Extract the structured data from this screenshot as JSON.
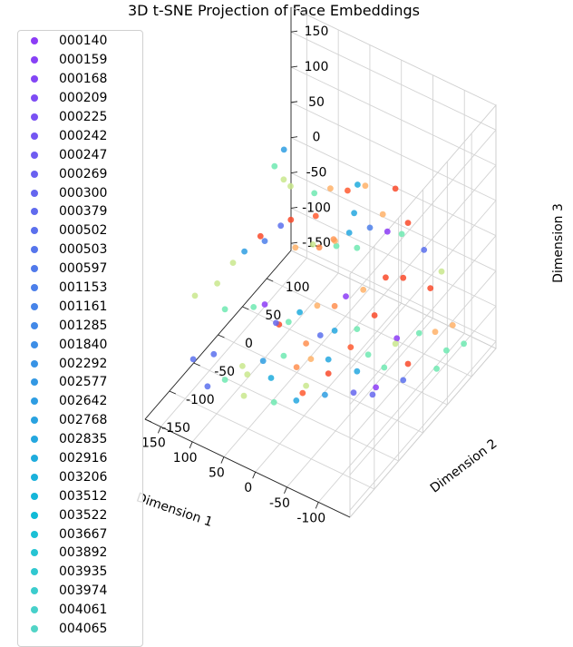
{
  "chart_data": {
    "type": "scatter",
    "title": "3D t-SNE Projection of Face Embeddings",
    "xlabel": "Dimension 1",
    "ylabel": "Dimension 2",
    "zlabel": "Dimension 3",
    "xlim": [
      -150,
      175
    ],
    "ylim": [
      -150,
      150
    ],
    "zlim": [
      -160,
      185
    ],
    "x_ticks": [
      "-100",
      "-50",
      "0",
      "50",
      "100",
      "150"
    ],
    "x_tick_values": [
      -100,
      -50,
      0,
      50,
      100,
      150
    ],
    "y_ticks": [
      "-150",
      "-100",
      "-50",
      "0",
      "50",
      "100"
    ],
    "y_tick_values": [
      -150,
      -100,
      -50,
      0,
      50,
      100
    ],
    "z_ticks": [
      "-150",
      "-100",
      "-50",
      "0",
      "50",
      "100",
      "150"
    ],
    "z_tick_values": [
      -150,
      -100,
      -50,
      0,
      50,
      100,
      150
    ],
    "grid": true,
    "legend_position": "left",
    "legend": [
      {
        "name": "000140",
        "color": "#8c3cf6"
      },
      {
        "name": "000159",
        "color": "#8841f6"
      },
      {
        "name": "000168",
        "color": "#8346f5"
      },
      {
        "name": "000209",
        "color": "#7e4cf4"
      },
      {
        "name": "000225",
        "color": "#7951f3"
      },
      {
        "name": "000242",
        "color": "#7456f2"
      },
      {
        "name": "000247",
        "color": "#6f5cf1"
      },
      {
        "name": "000269",
        "color": "#6a61f0"
      },
      {
        "name": "000300",
        "color": "#6566ef"
      },
      {
        "name": "000379",
        "color": "#606bee"
      },
      {
        "name": "000502",
        "color": "#5b70ed"
      },
      {
        "name": "000503",
        "color": "#5675ec"
      },
      {
        "name": "000597",
        "color": "#517aeb"
      },
      {
        "name": "001153",
        "color": "#4c7fea"
      },
      {
        "name": "001161",
        "color": "#4784e9"
      },
      {
        "name": "001285",
        "color": "#4289e8"
      },
      {
        "name": "001840",
        "color": "#3d8ee6"
      },
      {
        "name": "002292",
        "color": "#3893e5"
      },
      {
        "name": "002577",
        "color": "#3398e3"
      },
      {
        "name": "002642",
        "color": "#2e9de2"
      },
      {
        "name": "002768",
        "color": "#29a2e0"
      },
      {
        "name": "002835",
        "color": "#24a7df"
      },
      {
        "name": "002916",
        "color": "#1facdd"
      },
      {
        "name": "003206",
        "color": "#1ab1db"
      },
      {
        "name": "003512",
        "color": "#15b6d9"
      },
      {
        "name": "003522",
        "color": "#10bbd7"
      },
      {
        "name": "003667",
        "color": "#1bc0d5"
      },
      {
        "name": "003892",
        "color": "#26c4d3"
      },
      {
        "name": "003935",
        "color": "#31c8d0"
      },
      {
        "name": "003974",
        "color": "#3ccccd"
      },
      {
        "name": "004061",
        "color": "#47d0ca"
      },
      {
        "name": "004065",
        "color": "#52d4c6"
      }
    ],
    "points": [
      {
        "x": 55,
        "y": -20,
        "z": 170,
        "c": "#2e9de2"
      },
      {
        "x": 70,
        "y": -20,
        "z": 140,
        "c": "#6ee9b1"
      },
      {
        "x": 40,
        "y": -40,
        "z": 150,
        "c": "#c9e88d"
      },
      {
        "x": -60,
        "y": 60,
        "z": 100,
        "c": "#f94a2a"
      },
      {
        "x": -20,
        "y": 50,
        "z": 95,
        "c": "#ffb168"
      },
      {
        "x": -15,
        "y": 20,
        "z": 110,
        "c": "#ff5a30"
      },
      {
        "x": 20,
        "y": 30,
        "z": 90,
        "c": "#ffb168"
      },
      {
        "x": 30,
        "y": 10,
        "z": 95,
        "c": "#6ee9b1"
      },
      {
        "x": 20,
        "y": 0,
        "z": 75,
        "c": "#ff5a30"
      },
      {
        "x": 60,
        "y": 0,
        "z": 100,
        "c": "#c9e88d"
      },
      {
        "x": 60,
        "y": -20,
        "z": 60,
        "c": "#5b70ed"
      },
      {
        "x": 70,
        "y": -40,
        "z": 50,
        "c": "#4c7fea"
      },
      {
        "x": -80,
        "y": 60,
        "z": 60,
        "c": "#f94a2a"
      },
      {
        "x": -55,
        "y": 50,
        "z": 45,
        "c": "#8c3cf6"
      },
      {
        "x": -40,
        "y": 60,
        "z": 55,
        "c": "#ffb168"
      },
      {
        "x": -35,
        "y": 40,
        "z": 50,
        "c": "#4c7fea"
      },
      {
        "x": -10,
        "y": 30,
        "z": 40,
        "c": "#24a7df"
      },
      {
        "x": -5,
        "y": 10,
        "z": 35,
        "c": "#6ee9b1"
      },
      {
        "x": 5,
        "y": 20,
        "z": 30,
        "c": "#ffb168"
      },
      {
        "x": 15,
        "y": 30,
        "z": 20,
        "c": "#ff9a58"
      },
      {
        "x": 30,
        "y": 20,
        "z": 10,
        "c": "#ff8f50"
      },
      {
        "x": 40,
        "y": 20,
        "z": 10,
        "c": "#c9e88d"
      },
      {
        "x": 60,
        "y": 10,
        "z": 5,
        "c": "#ffb168"
      },
      {
        "x": 75,
        "y": 20,
        "z": 30,
        "c": "#f94a2a"
      },
      {
        "x": 100,
        "y": -10,
        "z": 20,
        "c": "#f94a2a"
      },
      {
        "x": 110,
        "y": -30,
        "z": 10,
        "c": "#2e9de2"
      },
      {
        "x": 105,
        "y": -60,
        "z": 20,
        "c": "#c9e88d"
      },
      {
        "x": -90,
        "y": 80,
        "z": 10,
        "c": "#5b70ed"
      },
      {
        "x": -70,
        "y": 60,
        "z": 40,
        "c": "#6ee9b1"
      },
      {
        "x": -30,
        "y": 20,
        "z": 35,
        "c": "#6ee9b1"
      },
      {
        "x": -110,
        "y": 90,
        "z": -20,
        "c": "#c9e88d"
      },
      {
        "x": -100,
        "y": 80,
        "z": -40,
        "c": "#f94a2a"
      },
      {
        "x": -80,
        "y": 50,
        "z": -10,
        "c": "#f94a2a"
      },
      {
        "x": -60,
        "y": 40,
        "z": -10,
        "c": "#f94a2a"
      },
      {
        "x": -40,
        "y": 20,
        "z": -20,
        "c": "#ffb168"
      },
      {
        "x": -20,
        "y": 10,
        "z": -30,
        "c": "#8c3cf6"
      },
      {
        "x": -10,
        "y": 0,
        "z": -40,
        "c": "#ff8f50"
      },
      {
        "x": 10,
        "y": -10,
        "z": -40,
        "c": "#ffb168"
      },
      {
        "x": 30,
        "y": -20,
        "z": -50,
        "c": "#1facdd"
      },
      {
        "x": 40,
        "y": -30,
        "z": -60,
        "c": "#6ee9b1"
      },
      {
        "x": 55,
        "y": -30,
        "z": -70,
        "c": "#f94a2a"
      },
      {
        "x": 60,
        "y": -30,
        "z": -70,
        "c": "#6566ef"
      },
      {
        "x": 80,
        "y": -50,
        "z": -40,
        "c": "#6ee9b1"
      },
      {
        "x": 110,
        "y": -70,
        "z": -40,
        "c": "#6ee9b1"
      },
      {
        "x": 130,
        "y": -60,
        "z": -20,
        "c": "#c9e88d"
      },
      {
        "x": 150,
        "y": -80,
        "z": -30,
        "c": "#c9e88d"
      },
      {
        "x": -50,
        "y": 30,
        "z": -60,
        "c": "#f94a2a"
      },
      {
        "x": -30,
        "y": 20,
        "z": -80,
        "c": "#6ee9b1"
      },
      {
        "x": -10,
        "y": 0,
        "z": -75,
        "c": "#24a7df"
      },
      {
        "x": 5,
        "y": -10,
        "z": -80,
        "c": "#5b70ed"
      },
      {
        "x": 20,
        "y": -20,
        "z": -90,
        "c": "#ff8f50"
      },
      {
        "x": 40,
        "y": -40,
        "z": -100,
        "c": "#6ee9b1"
      },
      {
        "x": 65,
        "y": -50,
        "z": -110,
        "c": "#2e9de2"
      },
      {
        "x": 90,
        "y": -60,
        "z": -120,
        "c": "#c9e88d"
      },
      {
        "x": 120,
        "y": -80,
        "z": -100,
        "c": "#5b70ed"
      },
      {
        "x": 145,
        "y": -90,
        "z": -110,
        "c": "#5b70ed"
      },
      {
        "x": -120,
        "y": 100,
        "z": -100,
        "c": "#ffb168"
      },
      {
        "x": -100,
        "y": 90,
        "z": -110,
        "c": "#ffb168"
      },
      {
        "x": -90,
        "y": 70,
        "z": -100,
        "c": "#6ee9b1"
      },
      {
        "x": -70,
        "y": 50,
        "z": -100,
        "c": "#8c3cf6"
      },
      {
        "x": -60,
        "y": 60,
        "z": -120,
        "c": "#c9e88d"
      },
      {
        "x": -40,
        "y": 30,
        "z": -120,
        "c": "#6ee9b1"
      },
      {
        "x": -20,
        "y": 20,
        "z": -110,
        "c": "#ff5a30"
      },
      {
        "x": 0,
        "y": 0,
        "z": -120,
        "c": "#24a7df"
      },
      {
        "x": 20,
        "y": -10,
        "z": -120,
        "c": "#ffb168"
      },
      {
        "x": 35,
        "y": -20,
        "z": -130,
        "c": "#ff8f50"
      },
      {
        "x": 60,
        "y": -40,
        "z": -140,
        "c": "#1facdd"
      },
      {
        "x": 90,
        "y": -50,
        "z": -140,
        "c": "#c9e88d"
      },
      {
        "x": 110,
        "y": -70,
        "z": -140,
        "c": "#6ee9b1"
      },
      {
        "x": 130,
        "y": -80,
        "z": -150,
        "c": "#5b70ed"
      },
      {
        "x": -130,
        "y": 110,
        "z": -130,
        "c": "#6ee9b1"
      },
      {
        "x": -110,
        "y": 100,
        "z": -140,
        "c": "#6ee9b1"
      },
      {
        "x": -80,
        "y": 60,
        "z": -140,
        "c": "#f94a2a"
      },
      {
        "x": -50,
        "y": 50,
        "z": -150,
        "c": "#6ee9b1"
      },
      {
        "x": -30,
        "y": 20,
        "z": -140,
        "c": "#24a7df"
      },
      {
        "x": 0,
        "y": 0,
        "z": -140,
        "c": "#f94a2a"
      },
      {
        "x": 20,
        "y": -20,
        "z": -150,
        "c": "#c9e88d"
      },
      {
        "x": -110,
        "y": 80,
        "z": -150,
        "c": "#6ee9b1"
      },
      {
        "x": -80,
        "y": 50,
        "z": -155,
        "c": "#5b70ed"
      },
      {
        "x": -60,
        "y": 20,
        "z": -150,
        "c": "#8c3cf6"
      },
      {
        "x": -40,
        "y": 0,
        "z": -150,
        "c": "#6566ef"
      },
      {
        "x": -10,
        "y": -20,
        "z": -150,
        "c": "#2e9de2"
      },
      {
        "x": 20,
        "y": -40,
        "z": -155,
        "c": "#24a7df"
      },
      {
        "x": 40,
        "y": -60,
        "z": -150,
        "c": "#6ee9b1"
      },
      {
        "x": 80,
        "y": -70,
        "z": -150,
        "c": "#c9e88d"
      },
      {
        "x": -70,
        "y": 0,
        "z": -140,
        "c": "#6566ef"
      },
      {
        "x": 10,
        "y": -40,
        "z": -140,
        "c": "#ff5a30"
      },
      {
        "x": 70,
        "y": -40,
        "z": -40,
        "c": "#8c3cf6"
      },
      {
        "x": 0,
        "y": 60,
        "z": 80,
        "c": "#1facdd"
      },
      {
        "x": -10,
        "y": 40,
        "z": 60,
        "c": "#24a7df"
      }
    ]
  }
}
